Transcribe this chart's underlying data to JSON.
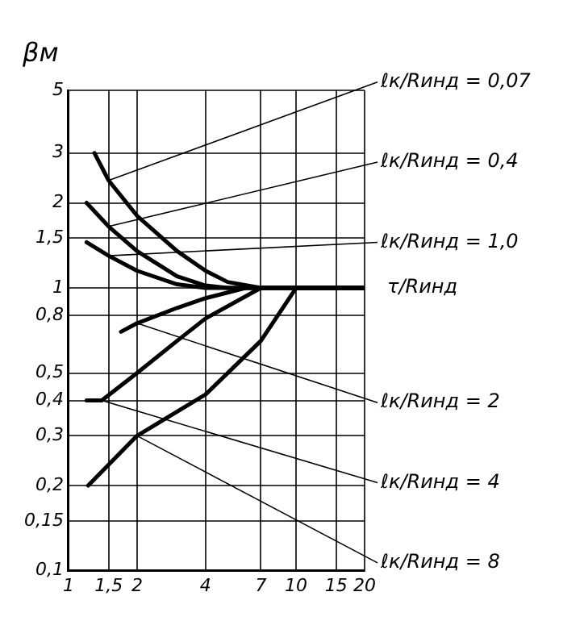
{
  "chart_data": {
    "type": "line",
    "xlabel": "τ/Rинд",
    "ylabel": "βм",
    "log": "xy",
    "grid": true,
    "marker": "none",
    "line_style": "solid",
    "xlim": [
      1,
      20
    ],
    "xticks": [
      1,
      {
        "value": 1.5,
        "label": "1,5"
      },
      2,
      4,
      7,
      10,
      15,
      20
    ],
    "ylim": [
      0.1,
      5
    ],
    "yticks": [
      {
        "value": 0.1,
        "label": "0,1"
      },
      {
        "value": 0.15,
        "label": "0,15"
      },
      {
        "value": 0.2,
        "label": "0,2"
      },
      {
        "value": 0.3,
        "label": "0,3"
      },
      {
        "value": 0.4,
        "label": "0,4"
      },
      {
        "value": 0.5,
        "label": "0,5"
      },
      {
        "value": 0.8,
        "label": "0,8"
      },
      1,
      {
        "value": 1.5,
        "label": "1,5"
      },
      2,
      3,
      5
    ],
    "series": [
      {
        "name": "ℓк/Rинд = 0,07",
        "color": "#000000",
        "x": [
          1.3,
          1.5,
          2,
          3,
          4,
          5,
          7,
          20
        ],
        "values": [
          3,
          2.4,
          1.8,
          1.35,
          1.15,
          1.05,
          1,
          1
        ]
      },
      {
        "name": "ℓк/Rинд = 0,4",
        "color": "#000000",
        "x": [
          1.2,
          1.5,
          2,
          3,
          4,
          5,
          20
        ],
        "values": [
          2,
          1.65,
          1.35,
          1.1,
          1.02,
          1,
          1
        ]
      },
      {
        "name": "ℓк/Rинд = 1,0",
        "color": "#000000",
        "x": [
          1.2,
          1.5,
          2,
          3,
          4,
          20
        ],
        "values": [
          1.45,
          1.3,
          1.15,
          1.03,
          1,
          1
        ]
      },
      {
        "name": "ℓк/Rинд = 2",
        "color": "#000000",
        "x": [
          1.7,
          2,
          3,
          4,
          6,
          20
        ],
        "values": [
          0.7,
          0.75,
          0.85,
          0.92,
          1,
          1
        ]
      },
      {
        "name": "ℓк/Rинд = 4",
        "color": "#000000",
        "x": [
          1.2,
          1.4,
          2,
          3,
          4,
          7,
          20
        ],
        "values": [
          0.4,
          0.4,
          0.5,
          0.65,
          0.78,
          1,
          1
        ]
      },
      {
        "name": "ℓк/Rинд = 8",
        "color": "#000000",
        "x": [
          1.22,
          2,
          4,
          7,
          10,
          20
        ],
        "values": [
          0.2,
          0.3,
          0.42,
          0.65,
          1,
          1
        ]
      }
    ]
  }
}
